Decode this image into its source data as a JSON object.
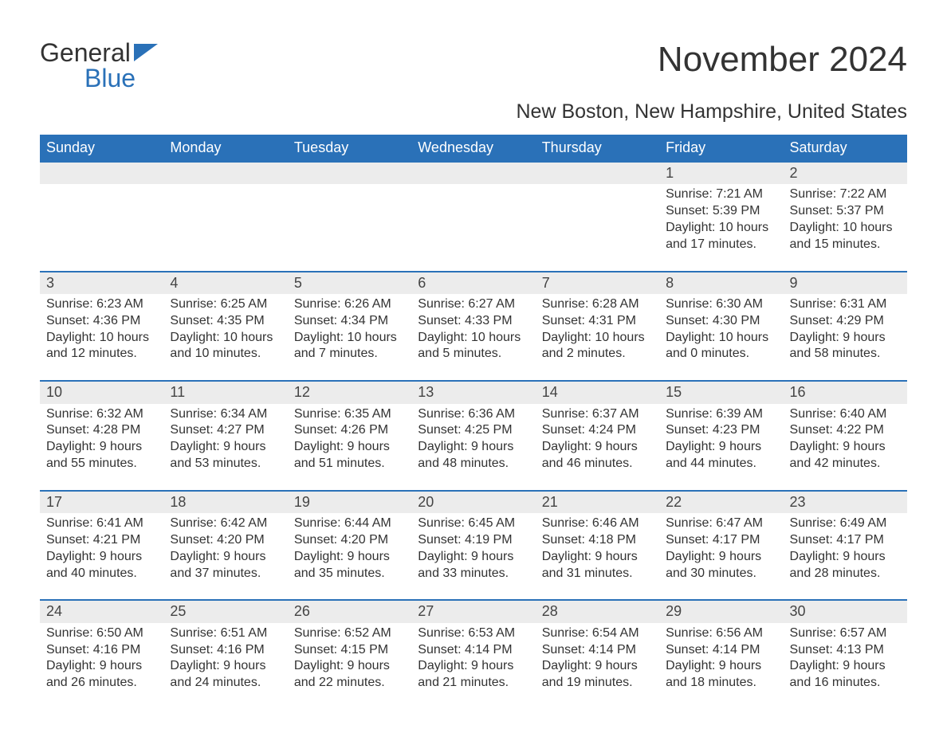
{
  "logo": {
    "line1": "General",
    "line2": "Blue"
  },
  "title": "November 2024",
  "subtitle": "New Boston, New Hampshire, United States",
  "colors": {
    "header_bg": "#2a71b8",
    "header_text": "#ffffff",
    "rule": "#2a71b8",
    "daynum_bg": "#ececec",
    "text": "#333333",
    "page_bg": "#ffffff"
  },
  "days_of_week": [
    "Sunday",
    "Monday",
    "Tuesday",
    "Wednesday",
    "Thursday",
    "Friday",
    "Saturday"
  ],
  "weeks": [
    [
      null,
      null,
      null,
      null,
      null,
      {
        "day": "1",
        "sunrise": "Sunrise: 7:21 AM",
        "sunset": "Sunset: 5:39 PM",
        "daylight1": "Daylight: 10 hours",
        "daylight2": "and 17 minutes."
      },
      {
        "day": "2",
        "sunrise": "Sunrise: 7:22 AM",
        "sunset": "Sunset: 5:37 PM",
        "daylight1": "Daylight: 10 hours",
        "daylight2": "and 15 minutes."
      }
    ],
    [
      {
        "day": "3",
        "sunrise": "Sunrise: 6:23 AM",
        "sunset": "Sunset: 4:36 PM",
        "daylight1": "Daylight: 10 hours",
        "daylight2": "and 12 minutes."
      },
      {
        "day": "4",
        "sunrise": "Sunrise: 6:25 AM",
        "sunset": "Sunset: 4:35 PM",
        "daylight1": "Daylight: 10 hours",
        "daylight2": "and 10 minutes."
      },
      {
        "day": "5",
        "sunrise": "Sunrise: 6:26 AM",
        "sunset": "Sunset: 4:34 PM",
        "daylight1": "Daylight: 10 hours",
        "daylight2": "and 7 minutes."
      },
      {
        "day": "6",
        "sunrise": "Sunrise: 6:27 AM",
        "sunset": "Sunset: 4:33 PM",
        "daylight1": "Daylight: 10 hours",
        "daylight2": "and 5 minutes."
      },
      {
        "day": "7",
        "sunrise": "Sunrise: 6:28 AM",
        "sunset": "Sunset: 4:31 PM",
        "daylight1": "Daylight: 10 hours",
        "daylight2": "and 2 minutes."
      },
      {
        "day": "8",
        "sunrise": "Sunrise: 6:30 AM",
        "sunset": "Sunset: 4:30 PM",
        "daylight1": "Daylight: 10 hours",
        "daylight2": "and 0 minutes."
      },
      {
        "day": "9",
        "sunrise": "Sunrise: 6:31 AM",
        "sunset": "Sunset: 4:29 PM",
        "daylight1": "Daylight: 9 hours",
        "daylight2": "and 58 minutes."
      }
    ],
    [
      {
        "day": "10",
        "sunrise": "Sunrise: 6:32 AM",
        "sunset": "Sunset: 4:28 PM",
        "daylight1": "Daylight: 9 hours",
        "daylight2": "and 55 minutes."
      },
      {
        "day": "11",
        "sunrise": "Sunrise: 6:34 AM",
        "sunset": "Sunset: 4:27 PM",
        "daylight1": "Daylight: 9 hours",
        "daylight2": "and 53 minutes."
      },
      {
        "day": "12",
        "sunrise": "Sunrise: 6:35 AM",
        "sunset": "Sunset: 4:26 PM",
        "daylight1": "Daylight: 9 hours",
        "daylight2": "and 51 minutes."
      },
      {
        "day": "13",
        "sunrise": "Sunrise: 6:36 AM",
        "sunset": "Sunset: 4:25 PM",
        "daylight1": "Daylight: 9 hours",
        "daylight2": "and 48 minutes."
      },
      {
        "day": "14",
        "sunrise": "Sunrise: 6:37 AM",
        "sunset": "Sunset: 4:24 PM",
        "daylight1": "Daylight: 9 hours",
        "daylight2": "and 46 minutes."
      },
      {
        "day": "15",
        "sunrise": "Sunrise: 6:39 AM",
        "sunset": "Sunset: 4:23 PM",
        "daylight1": "Daylight: 9 hours",
        "daylight2": "and 44 minutes."
      },
      {
        "day": "16",
        "sunrise": "Sunrise: 6:40 AM",
        "sunset": "Sunset: 4:22 PM",
        "daylight1": "Daylight: 9 hours",
        "daylight2": "and 42 minutes."
      }
    ],
    [
      {
        "day": "17",
        "sunrise": "Sunrise: 6:41 AM",
        "sunset": "Sunset: 4:21 PM",
        "daylight1": "Daylight: 9 hours",
        "daylight2": "and 40 minutes."
      },
      {
        "day": "18",
        "sunrise": "Sunrise: 6:42 AM",
        "sunset": "Sunset: 4:20 PM",
        "daylight1": "Daylight: 9 hours",
        "daylight2": "and 37 minutes."
      },
      {
        "day": "19",
        "sunrise": "Sunrise: 6:44 AM",
        "sunset": "Sunset: 4:20 PM",
        "daylight1": "Daylight: 9 hours",
        "daylight2": "and 35 minutes."
      },
      {
        "day": "20",
        "sunrise": "Sunrise: 6:45 AM",
        "sunset": "Sunset: 4:19 PM",
        "daylight1": "Daylight: 9 hours",
        "daylight2": "and 33 minutes."
      },
      {
        "day": "21",
        "sunrise": "Sunrise: 6:46 AM",
        "sunset": "Sunset: 4:18 PM",
        "daylight1": "Daylight: 9 hours",
        "daylight2": "and 31 minutes."
      },
      {
        "day": "22",
        "sunrise": "Sunrise: 6:47 AM",
        "sunset": "Sunset: 4:17 PM",
        "daylight1": "Daylight: 9 hours",
        "daylight2": "and 30 minutes."
      },
      {
        "day": "23",
        "sunrise": "Sunrise: 6:49 AM",
        "sunset": "Sunset: 4:17 PM",
        "daylight1": "Daylight: 9 hours",
        "daylight2": "and 28 minutes."
      }
    ],
    [
      {
        "day": "24",
        "sunrise": "Sunrise: 6:50 AM",
        "sunset": "Sunset: 4:16 PM",
        "daylight1": "Daylight: 9 hours",
        "daylight2": "and 26 minutes."
      },
      {
        "day": "25",
        "sunrise": "Sunrise: 6:51 AM",
        "sunset": "Sunset: 4:16 PM",
        "daylight1": "Daylight: 9 hours",
        "daylight2": "and 24 minutes."
      },
      {
        "day": "26",
        "sunrise": "Sunrise: 6:52 AM",
        "sunset": "Sunset: 4:15 PM",
        "daylight1": "Daylight: 9 hours",
        "daylight2": "and 22 minutes."
      },
      {
        "day": "27",
        "sunrise": "Sunrise: 6:53 AM",
        "sunset": "Sunset: 4:14 PM",
        "daylight1": "Daylight: 9 hours",
        "daylight2": "and 21 minutes."
      },
      {
        "day": "28",
        "sunrise": "Sunrise: 6:54 AM",
        "sunset": "Sunset: 4:14 PM",
        "daylight1": "Daylight: 9 hours",
        "daylight2": "and 19 minutes."
      },
      {
        "day": "29",
        "sunrise": "Sunrise: 6:56 AM",
        "sunset": "Sunset: 4:14 PM",
        "daylight1": "Daylight: 9 hours",
        "daylight2": "and 18 minutes."
      },
      {
        "day": "30",
        "sunrise": "Sunrise: 6:57 AM",
        "sunset": "Sunset: 4:13 PM",
        "daylight1": "Daylight: 9 hours",
        "daylight2": "and 16 minutes."
      }
    ]
  ]
}
